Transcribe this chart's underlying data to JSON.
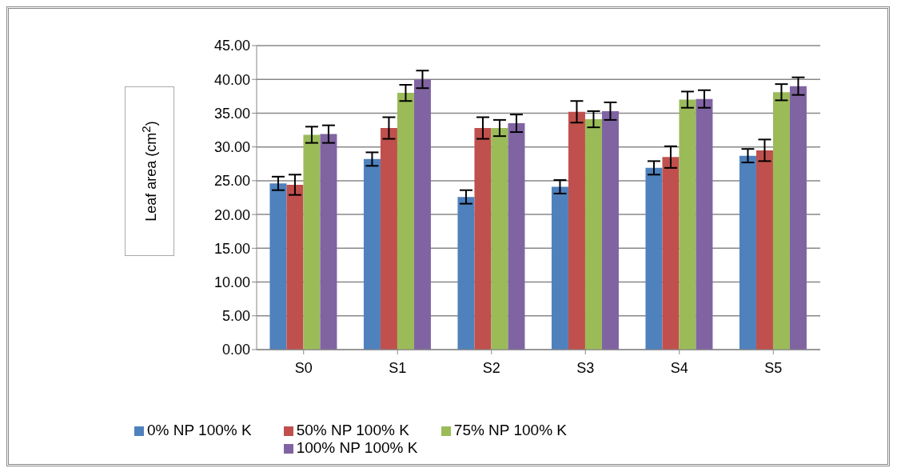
{
  "chart_data": {
    "type": "bar",
    "ylabel": "Leaf area (cm$^{2}$)",
    "categories": [
      "S0",
      "S1",
      "S2",
      "S3",
      "S4",
      "S5"
    ],
    "series": [
      {
        "name": "0% NP 100% K",
        "color": "#4f81bd",
        "values": [
          24.6,
          28.2,
          22.6,
          24.1,
          26.9,
          28.7
        ],
        "errors": [
          1.0,
          1.0,
          1.0,
          1.0,
          1.0,
          1.0
        ]
      },
      {
        "name": "50% NP 100% K",
        "color": "#c0504d",
        "values": [
          24.4,
          32.8,
          32.8,
          35.2,
          28.5,
          29.5
        ],
        "errors": [
          1.5,
          1.6,
          1.6,
          1.6,
          1.6,
          1.6
        ]
      },
      {
        "name": "75% NP 100% K",
        "color": "#9bbb59",
        "values": [
          31.8,
          38.0,
          32.8,
          34.1,
          37.0,
          38.1
        ],
        "errors": [
          1.2,
          1.2,
          1.2,
          1.2,
          1.2,
          1.2
        ]
      },
      {
        "name": "100% NP 100% K",
        "color": "#8064a2",
        "values": [
          31.9,
          40.0,
          33.5,
          35.3,
          37.1,
          39.0
        ],
        "errors": [
          1.3,
          1.3,
          1.3,
          1.3,
          1.3,
          1.3
        ]
      }
    ],
    "ylim": [
      0,
      45
    ],
    "yticks": [
      {
        "value": 0,
        "label": "0.00"
      },
      {
        "value": 5,
        "label": "5.00"
      },
      {
        "value": 10,
        "label": "10.00"
      },
      {
        "value": 15,
        "label": "15.00"
      },
      {
        "value": 20,
        "label": "20.00"
      },
      {
        "value": 25,
        "label": "25.00"
      },
      {
        "value": 30,
        "label": "30.00"
      },
      {
        "value": 35,
        "label": "35.00"
      },
      {
        "value": 40,
        "label": "40.00"
      },
      {
        "value": 45,
        "label": "45.00"
      }
    ],
    "grid": "y",
    "legend": "bottom"
  }
}
